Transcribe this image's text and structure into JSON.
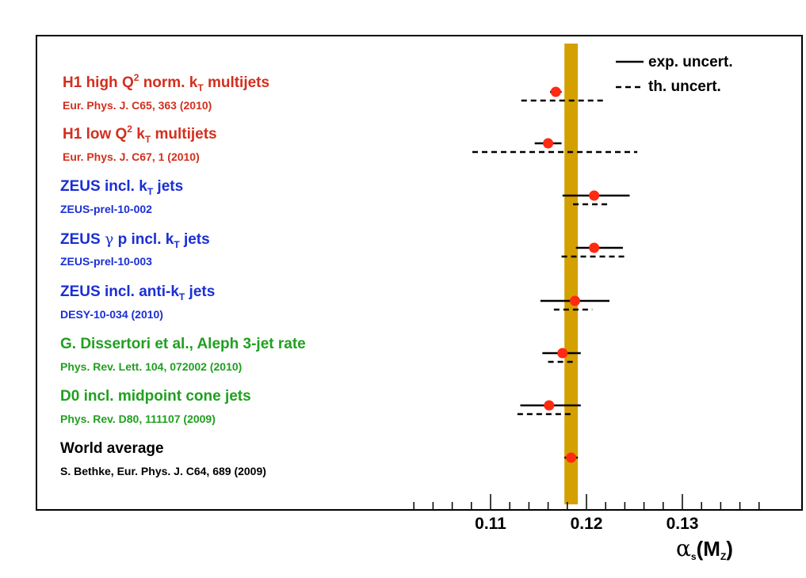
{
  "chart_data": {
    "type": "forest",
    "xlim": [
      0.102,
      0.139
    ],
    "xlabel": {
      "symbol": "α",
      "sub1": "s",
      "open": "(M",
      "sub2": "Z",
      "close": ")"
    },
    "ticks": [
      {
        "value": 0.11,
        "label": "0.11"
      },
      {
        "value": 0.12,
        "label": "0.12"
      },
      {
        "value": 0.13,
        "label": "0.13"
      }
    ],
    "band": {
      "center": 0.1184,
      "low": 0.1177,
      "high": 0.1191,
      "color": "#d4a000"
    },
    "legend": {
      "exp": "exp. uncert.",
      "th": "th. uncert.",
      "position": "top-right"
    },
    "entries": [
      {
        "title_pre": "H1 high Q",
        "title_sup": "2",
        "title_mid": " norm. k",
        "title_sub": "T",
        "title_post": " multijets",
        "ref": "Eur. Phys. J. C65, 363 (2010)",
        "color": "#d32f1e",
        "value": 0.1168,
        "exp_low": 0.1162,
        "exp_high": 0.1174,
        "th_low": 0.1132,
        "th_high": 0.1218
      },
      {
        "title_pre": "H1 low Q",
        "title_sup": "2",
        "title_mid": " k",
        "title_sub": "T",
        "title_post": " multijets",
        "ref": "Eur. Phys. J. C67, 1 (2010)",
        "color": "#d32f1e",
        "value": 0.116,
        "exp_low": 0.1146,
        "exp_high": 0.1174,
        "th_low": 0.1081,
        "th_high": 0.1253
      },
      {
        "title_pre": "ZEUS incl. k",
        "title_sup": "",
        "title_mid": "",
        "title_sub": "T",
        "title_post": " jets",
        "ref": "ZEUS-prel-10-002",
        "color": "#1a2fd4",
        "value": 0.1208,
        "exp_low": 0.1175,
        "exp_high": 0.1245,
        "th_low": 0.1186,
        "th_high": 0.1225
      },
      {
        "title_pre": "ZEUS ",
        "title_greek": "γ",
        "title_mid": " p incl. k",
        "title_sub": "T",
        "title_post": " jets",
        "ref": "ZEUS-prel-10-003",
        "color": "#1a2fd4",
        "value": 0.1208,
        "exp_low": 0.1189,
        "exp_high": 0.1238,
        "th_low": 0.1174,
        "th_high": 0.124
      },
      {
        "title_pre": "ZEUS incl. anti-k",
        "title_sup": "",
        "title_mid": "",
        "title_sub": "T",
        "title_post": " jets",
        "ref": "DESY-10-034 (2010)",
        "color": "#1a2fd4",
        "value": 0.1188,
        "exp_low": 0.1152,
        "exp_high": 0.1224,
        "th_low": 0.1166,
        "th_high": 0.1206
      },
      {
        "title_pre": "G. Dissertori et al., Aleph 3-jet rate",
        "ref": "Phys. Rev. Lett. 104, 072002 (2010)",
        "color": "#20a020",
        "value": 0.1175,
        "exp_low": 0.1154,
        "exp_high": 0.1194,
        "th_low": 0.116,
        "th_high": 0.1188
      },
      {
        "title_pre": "D0 incl. midpoint cone jets",
        "ref": "Phys. Rev. D80, 111107 (2009)",
        "color": "#20a020",
        "value": 0.1161,
        "exp_low": 0.1131,
        "exp_high": 0.1194,
        "th_low": 0.1128,
        "th_high": 0.1184
      },
      {
        "title_pre": "World average",
        "ref": "S. Bethke, Eur. Phys. J. C64, 689 (2009)",
        "color": "#000000",
        "value": 0.1184,
        "exp_low": 0.1177,
        "exp_high": 0.1191,
        "th_low": null,
        "th_high": null
      }
    ]
  }
}
